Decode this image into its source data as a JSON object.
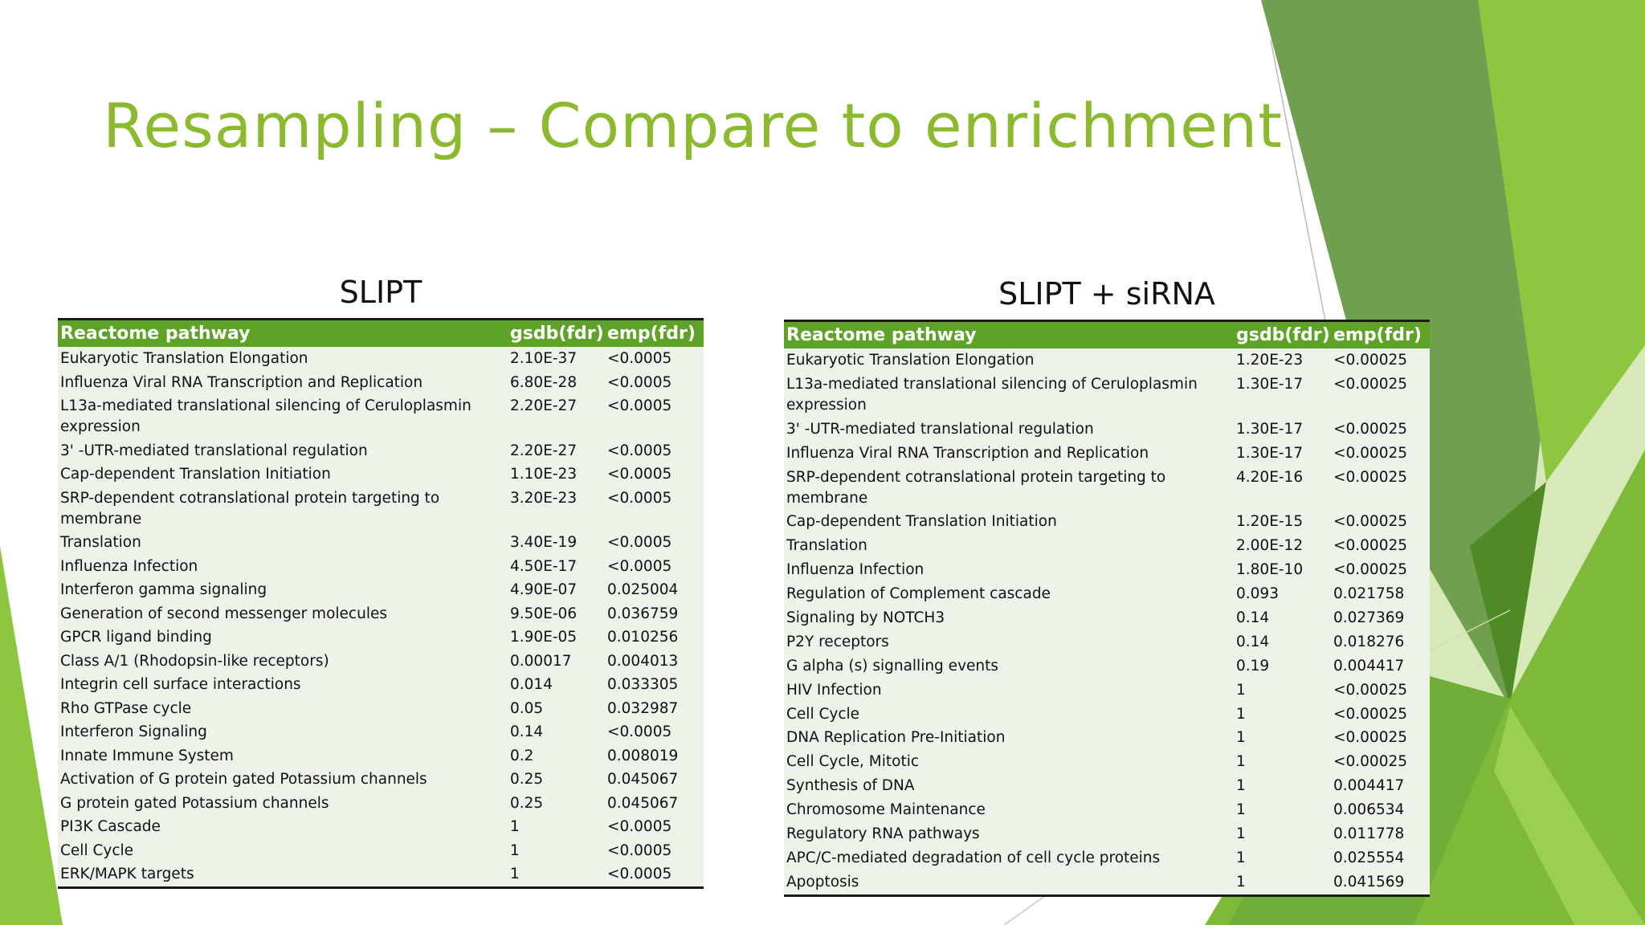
{
  "slide": {
    "title": "Resampling – Compare to enrichment",
    "accent_color": "#8cba2f",
    "header_color": "#5ea327"
  },
  "tables": [
    {
      "caption": "SLIPT",
      "headers": [
        "Reactome pathway",
        "gsdb(fdr)",
        "emp(fdr)"
      ],
      "rows": [
        [
          "Eukaryotic Translation Elongation",
          "2.10E-37",
          "<0.0005"
        ],
        [
          "Influenza Viral RNA Transcription and Replication",
          "6.80E-28",
          "<0.0005"
        ],
        [
          "L13a-mediated translational silencing of Ceruloplasmin expression",
          "2.20E-27",
          "<0.0005"
        ],
        [
          "3' -UTR-mediated translational regulation",
          "2.20E-27",
          "<0.0005"
        ],
        [
          "Cap-dependent Translation Initiation",
          "1.10E-23",
          "<0.0005"
        ],
        [
          "SRP-dependent cotranslational protein targeting to membrane",
          "3.20E-23",
          "<0.0005"
        ],
        [
          "Translation",
          "3.40E-19",
          "<0.0005"
        ],
        [
          "Influenza Infection",
          "4.50E-17",
          "<0.0005"
        ],
        [
          "Interferon gamma signaling",
          "4.90E-07",
          "0.025004"
        ],
        [
          "Generation of second messenger molecules",
          "9.50E-06",
          "0.036759"
        ],
        [
          "GPCR ligand binding",
          "1.90E-05",
          "0.010256"
        ],
        [
          "Class A/1 (Rhodopsin-like receptors)",
          "0.00017",
          "0.004013"
        ],
        [
          "Integrin cell surface interactions",
          "0.014",
          "0.033305"
        ],
        [
          "Rho GTPase cycle",
          "0.05",
          "0.032987"
        ],
        [
          "Interferon Signaling",
          "0.14",
          "<0.0005"
        ],
        [
          "Innate Immune System",
          "0.2",
          "0.008019"
        ],
        [
          "Activation of G protein gated Potassium channels",
          "0.25",
          "0.045067"
        ],
        [
          "G protein gated Potassium channels",
          "0.25",
          "0.045067"
        ],
        [
          "PI3K Cascade",
          "1",
          "<0.0005"
        ],
        [
          "Cell Cycle",
          "1",
          "<0.0005"
        ],
        [
          "ERK/MAPK targets",
          "1",
          "<0.0005"
        ]
      ]
    },
    {
      "caption": "SLIPT + siRNA",
      "headers": [
        "Reactome pathway",
        "gsdb(fdr)",
        "emp(fdr)"
      ],
      "rows": [
        [
          "Eukaryotic Translation Elongation",
          "1.20E-23",
          "<0.00025"
        ],
        [
          "L13a-mediated translational silencing of Ceruloplasmin expression",
          "1.30E-17",
          "<0.00025"
        ],
        [
          "3' -UTR-mediated translational regulation",
          "1.30E-17",
          "<0.00025"
        ],
        [
          "Influenza Viral RNA Transcription and Replication",
          "1.30E-17",
          "<0.00025"
        ],
        [
          "SRP-dependent cotranslational protein targeting to membrane",
          "4.20E-16",
          "<0.00025"
        ],
        [
          "Cap-dependent Translation Initiation",
          "1.20E-15",
          "<0.00025"
        ],
        [
          "Translation",
          "2.00E-12",
          "<0.00025"
        ],
        [
          "Influenza Infection",
          "1.80E-10",
          "<0.00025"
        ],
        [
          "Regulation of Complement cascade",
          "0.093",
          "0.021758"
        ],
        [
          "Signaling by NOTCH3",
          "0.14",
          "0.027369"
        ],
        [
          "P2Y receptors",
          "0.14",
          "0.018276"
        ],
        [
          "G alpha (s) signalling events",
          "0.19",
          "0.004417"
        ],
        [
          "HIV Infection",
          "1",
          "<0.00025"
        ],
        [
          "Cell Cycle",
          "1",
          "<0.00025"
        ],
        [
          "DNA Replication Pre-Initiation",
          "1",
          "<0.00025"
        ],
        [
          "Cell Cycle, Mitotic",
          "1",
          "<0.00025"
        ],
        [
          "Synthesis of DNA",
          "1",
          "0.004417"
        ],
        [
          "Chromosome Maintenance",
          "1",
          "0.006534"
        ],
        [
          "Regulatory RNA pathways",
          "1",
          "0.011778"
        ],
        [
          "APC/C-mediated degradation of cell cycle proteins",
          "1",
          "0.025554"
        ],
        [
          "Apoptosis",
          "1",
          "0.041569"
        ]
      ]
    }
  ]
}
